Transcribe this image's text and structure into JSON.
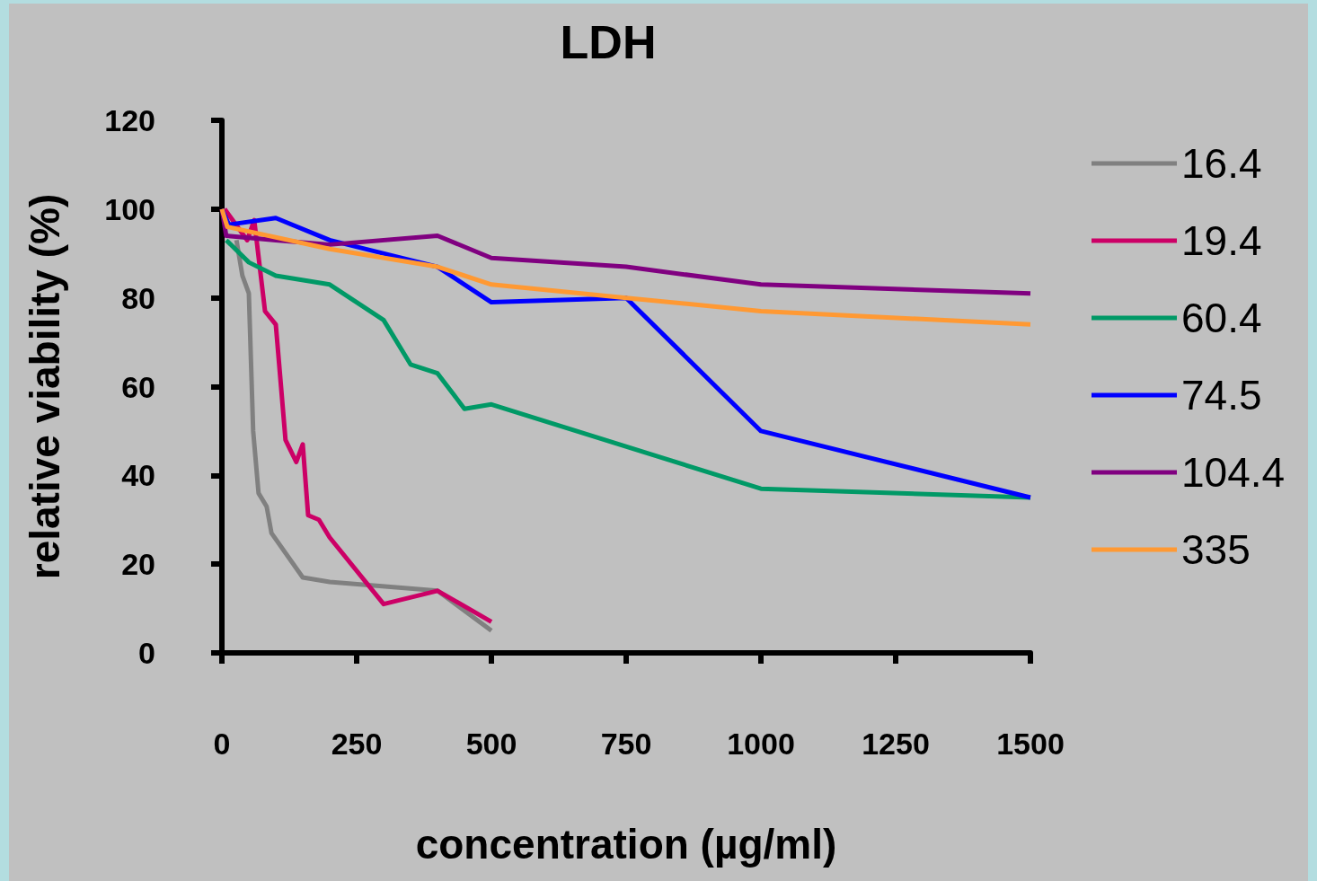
{
  "chart_data": {
    "type": "line",
    "title": "LDH",
    "xlabel": "concentration (µg/ml)",
    "ylabel": "relative viability (%)",
    "xlim": [
      0,
      1500
    ],
    "xticks": [
      0,
      250,
      500,
      750,
      1000,
      1250,
      1500
    ],
    "ylim": [
      0,
      120
    ],
    "yticks": [
      0,
      20,
      40,
      60,
      80,
      100,
      120
    ],
    "grid": false,
    "legend": "top right",
    "series": [
      {
        "name": "16.4",
        "color": "#808080",
        "x": [
          27,
          38,
          50,
          58,
          68,
          83,
          92,
          150,
          200,
          400,
          500
        ],
        "values": [
          93,
          85,
          81,
          50,
          36,
          33,
          27,
          17,
          16,
          14,
          5
        ]
      },
      {
        "name": "19.4",
        "color": "#cc0066",
        "x": [
          5,
          47,
          60,
          80,
          100,
          118,
          138,
          150,
          160,
          180,
          200,
          300,
          400,
          500
        ],
        "values": [
          100,
          93,
          97.5,
          77,
          74,
          48,
          43,
          47,
          31,
          30,
          26,
          11,
          14,
          7
        ]
      },
      {
        "name": "60.4",
        "color": "#009966",
        "x": [
          8,
          50,
          100,
          200,
          300,
          350,
          400,
          450,
          500,
          1000,
          1500
        ],
        "values": [
          93,
          88,
          85,
          83,
          75,
          65,
          63,
          55,
          56,
          37,
          35
        ]
      },
      {
        "name": "74.5",
        "color": "#0000ff",
        "x": [
          0,
          13,
          100,
          200,
          400,
          500,
          750,
          1000,
          1500
        ],
        "values": [
          100,
          96.5,
          98,
          93,
          87,
          79,
          80,
          50,
          35
        ]
      },
      {
        "name": "104.4",
        "color": "#800080",
        "x": [
          0,
          8,
          100,
          200,
          400,
          500,
          750,
          1000,
          1500
        ],
        "values": [
          100,
          94,
          93,
          92,
          94,
          89,
          87,
          83,
          81
        ]
      },
      {
        "name": "335",
        "color": "#ff9933",
        "x": [
          0,
          10,
          200,
          400,
          500,
          750,
          1000,
          1500
        ],
        "values": [
          100,
          96,
          91,
          87,
          83,
          80,
          77,
          74
        ]
      }
    ]
  }
}
